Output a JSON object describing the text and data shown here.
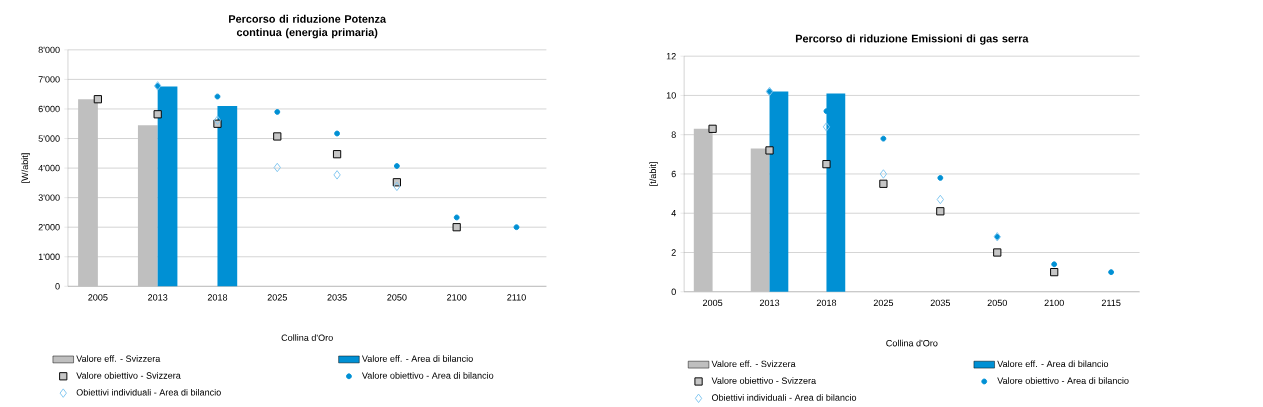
{
  "chart_data": [
    {
      "type": "bar",
      "title": "Percorso di riduzione Potenza continua (energia primaria)",
      "xlabel": "Collina d'Oro",
      "ylabel": "[W/abit]",
      "categories": [
        "2005",
        "2013",
        "2018",
        "2025",
        "2035",
        "2050",
        "2100",
        "2110"
      ],
      "ylim": [
        0,
        8000
      ],
      "yticks": [
        {
          "value": 0,
          "label": "0"
        },
        {
          "value": 1000,
          "label": "1'000"
        },
        {
          "value": 2000,
          "label": "2'000"
        },
        {
          "value": 3000,
          "label": "3'000"
        },
        {
          "value": 4000,
          "label": "4'000"
        },
        {
          "value": 5000,
          "label": "5'000"
        },
        {
          "value": 6000,
          "label": "6'000"
        },
        {
          "value": 7000,
          "label": "7'000"
        },
        {
          "value": 8000,
          "label": "8'000"
        }
      ],
      "grid": "y",
      "legend": "bottom",
      "series": [
        {
          "name": "Valore eff. - Svizzera",
          "color": "#bfbfbf",
          "values": [
            6330,
            5450,
            null,
            null,
            null,
            null,
            null,
            null
          ]
        },
        {
          "name": "Valore eff. - Area di bilancio",
          "color": "#0090d4",
          "values": [
            null,
            6760,
            6100,
            null,
            null,
            null,
            null,
            null
          ]
        },
        {
          "name": "Valore obiettivo - Svizzera",
          "type": "scatter",
          "marker": "square",
          "color": "#000000",
          "values": [
            6330,
            5820,
            5500,
            5070,
            4470,
            3520,
            2000,
            null
          ]
        },
        {
          "name": "Valore obiettivo - Area di bilancio",
          "type": "scatter",
          "marker": "circle",
          "color": "#0090d4",
          "values": [
            null,
            6780,
            6420,
            5900,
            5170,
            4070,
            2330,
            2000
          ]
        },
        {
          "name": "Obiettivi individuali - Area di bilancio",
          "type": "scatter",
          "marker": "diamond",
          "color": "#7fc6ef",
          "values": [
            null,
            6780,
            5620,
            4020,
            3770,
            3380,
            null,
            null
          ]
        }
      ]
    },
    {
      "type": "bar",
      "title": "Percorso di riduzione Emissioni di gas serra",
      "xlabel": "Collina d'Oro",
      "ylabel": "[t/abit]",
      "categories": [
        "2005",
        "2013",
        "2018",
        "2025",
        "2035",
        "2050",
        "2100",
        "2115"
      ],
      "ylim": [
        0,
        12
      ],
      "yticks": [
        0,
        2,
        4,
        6,
        8,
        10,
        12
      ],
      "grid": "y",
      "legend": "bottom",
      "series": [
        {
          "name": "Valore eff. - Svizzera",
          "color": "#bfbfbf",
          "values": [
            8.3,
            7.3,
            null,
            null,
            null,
            null,
            null,
            null
          ]
        },
        {
          "name": "Valore eff. - Area di bilancio",
          "color": "#0090d4",
          "values": [
            null,
            10.2,
            10.1,
            null,
            null,
            null,
            null,
            null
          ]
        },
        {
          "name": "Valore obiettivo - Svizzera",
          "type": "scatter",
          "marker": "square",
          "color": "#000000",
          "values": [
            8.3,
            7.2,
            6.5,
            5.5,
            4.1,
            2.0,
            1.0,
            null
          ]
        },
        {
          "name": "Valore obiettivo - Area di bilancio",
          "type": "scatter",
          "marker": "circle",
          "color": "#0090d4",
          "values": [
            null,
            10.2,
            9.2,
            7.8,
            5.8,
            2.8,
            1.4,
            1.0
          ]
        },
        {
          "name": "Obiettivi individuali - Area di bilancio",
          "type": "scatter",
          "marker": "diamond",
          "color": "#7fc6ef",
          "values": [
            null,
            10.2,
            8.4,
            6.0,
            4.7,
            2.8,
            null,
            null
          ]
        }
      ]
    }
  ]
}
